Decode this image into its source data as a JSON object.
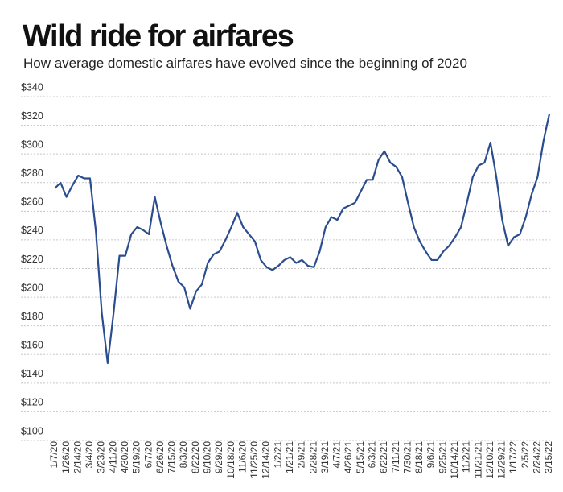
{
  "chart_data": {
    "type": "line",
    "title": "Wild ride for airfares",
    "subtitle": "How average domestic airfares have evolved since the beginning of 2020",
    "categories": [
      "1/7/20",
      null,
      "1/26/20",
      null,
      "2/14/20",
      null,
      "3/4/20",
      null,
      "3/23/20",
      null,
      "4/11/20",
      null,
      "4/30/20",
      null,
      "5/19/20",
      null,
      "6/7/20",
      null,
      "6/26/20",
      null,
      "7/15/20",
      null,
      "8/3/20",
      null,
      "8/22/20",
      null,
      "9/10/20",
      null,
      "9/29/20",
      null,
      "10/18/20",
      null,
      "11/6/20",
      null,
      "11/25/20",
      null,
      "12/14/20",
      null,
      "1/2/21",
      null,
      "1/21/21",
      null,
      "2/9/21",
      null,
      "2/28/21",
      null,
      "3/19/21",
      null,
      "4/7/21",
      null,
      "4/26/21",
      null,
      "5/15/21",
      null,
      "6/3/21",
      null,
      "6/22/21",
      null,
      "7/11/21",
      null,
      "7/30/21",
      null,
      "8/18/21",
      null,
      "9/6/21",
      null,
      "9/25/21",
      null,
      "10/14/21",
      null,
      "11/2/21",
      null,
      "11/21/21",
      null,
      "12/10/21",
      null,
      "12/29/21",
      null,
      "1/17/22",
      null,
      "2/5/22",
      null,
      "2/24/22",
      null,
      "3/15/22"
    ],
    "series": [
      {
        "name": "Average domestic airfare",
        "color": "#2a4d8f",
        "values": [
          272,
          276,
          266,
          274,
          281,
          279,
          279,
          242,
          185,
          150,
          185,
          225,
          225,
          240,
          245,
          243,
          240,
          266,
          248,
          232,
          218,
          207,
          203,
          188,
          200,
          205,
          220,
          226,
          228,
          236,
          245,
          255,
          245,
          240,
          235,
          222,
          217,
          215,
          218,
          222,
          224,
          220,
          222,
          218,
          217,
          228,
          245,
          252,
          250,
          258,
          260,
          262,
          270,
          278,
          278,
          292,
          298,
          290,
          287,
          280,
          262,
          245,
          235,
          228,
          222,
          222,
          228,
          232,
          238,
          245,
          262,
          280,
          288,
          290,
          304,
          280,
          250,
          232,
          238,
          240,
          252,
          268,
          280,
          305,
          324
        ]
      }
    ],
    "ylim": [
      100,
      340
    ],
    "yticks": [
      {
        "value": 100,
        "label": "$100"
      },
      {
        "value": 120,
        "label": "$120"
      },
      {
        "value": 140,
        "label": "$140"
      },
      {
        "value": 160,
        "label": "$160"
      },
      {
        "value": 180,
        "label": "$180"
      },
      {
        "value": 200,
        "label": "$200"
      },
      {
        "value": 220,
        "label": "$220"
      },
      {
        "value": 240,
        "label": "$240"
      },
      {
        "value": 260,
        "label": "$260"
      },
      {
        "value": 280,
        "label": "$280"
      },
      {
        "value": 300,
        "label": "$300"
      },
      {
        "value": 320,
        "label": "$320"
      },
      {
        "value": 340,
        "label": "$340"
      }
    ],
    "grid": true
  }
}
